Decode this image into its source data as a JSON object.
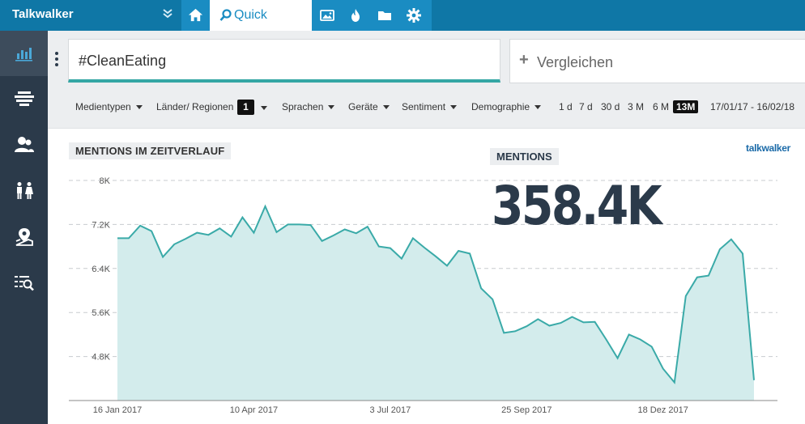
{
  "app": {
    "brand": "Talkwalker",
    "active_tab": "Quick Search"
  },
  "search": {
    "query": "#CleanEating",
    "compare_label": "Vergleichen"
  },
  "filters": [
    {
      "label": "Medientypen"
    },
    {
      "label": "Länder/ Regionen",
      "badge": "1"
    },
    {
      "label": "Sprachen"
    },
    {
      "label": "Geräte"
    },
    {
      "label": "Sentiment"
    },
    {
      "label": "Demographie"
    }
  ],
  "periods": [
    {
      "label": "1 d",
      "active": false
    },
    {
      "label": "7 d",
      "active": false
    },
    {
      "label": "30 d",
      "active": false
    },
    {
      "label": "3 M",
      "active": false
    },
    {
      "label": "6 M",
      "active": false
    },
    {
      "label": "13M",
      "active": true
    }
  ],
  "date_range": "17/01/17 - 16/02/18",
  "panel": {
    "title": "MENTIONS IM ZEITVERLAUF",
    "mentions_label": "MENTIONS",
    "mentions_value": "358.4K",
    "logo": "talkwalker"
  },
  "chart_data": {
    "type": "area",
    "color": "#3aaaa8",
    "fill": "#d3ecec",
    "ylim": [
      4000,
      8000
    ],
    "yticks": [
      "8K",
      "7.2K",
      "6.4K",
      "5.6K",
      "4.8K"
    ],
    "ytick_values": [
      8000,
      7200,
      6400,
      5600,
      4800
    ],
    "xticks": [
      "16 Jan 2017",
      "10 Apr 2017",
      "3 Jul 2017",
      "25 Sep 2017",
      "18 Dez 2017"
    ],
    "xtick_index": [
      0,
      12,
      24,
      36,
      48
    ],
    "values": [
      6950,
      6950,
      7180,
      7080,
      6610,
      6840,
      6940,
      7050,
      7010,
      7130,
      6980,
      7330,
      7050,
      7530,
      7060,
      7200,
      7200,
      7190,
      6900,
      7000,
      7110,
      7040,
      7160,
      6800,
      6770,
      6580,
      6950,
      6780,
      6620,
      6450,
      6720,
      6670,
      6040,
      5840,
      5230,
      5260,
      5350,
      5480,
      5360,
      5410,
      5520,
      5420,
      5430,
      5110,
      4770,
      5200,
      5110,
      4980,
      4580,
      4330,
      5900,
      6240,
      6270,
      6750,
      6930,
      6670,
      4370
    ]
  }
}
